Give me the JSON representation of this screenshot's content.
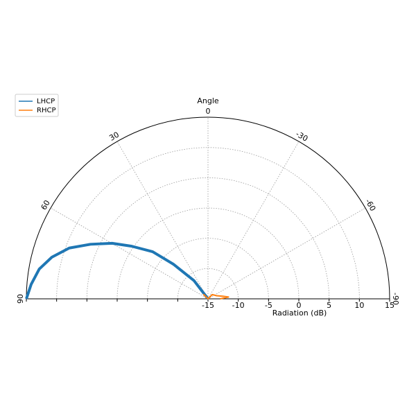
{
  "chart_data": {
    "type": "polar",
    "xlabel": "Angle",
    "ylabel": "Radiation (dB)",
    "xlim": [
      90,
      -90
    ],
    "xticks": [
      90,
      60,
      30,
      0,
      -30,
      -60,
      -90
    ],
    "ylim": [
      -15,
      15
    ],
    "yticks": [
      -15,
      -10,
      -5,
      0,
      5,
      10,
      15
    ],
    "grid": true,
    "legend": "upper left",
    "series": [
      {
        "name": "LHCP",
        "color": "#1f77b4",
        "x": [
          90,
          85.3,
          80,
          75.1,
          69.9,
          65.1,
          59.9,
          55.4,
          49.6,
          45,
          37.6,
          0
        ],
        "values": [
          15,
          14.3,
          13.3,
          11.7,
          9.4,
          6.4,
          3.3,
          0.3,
          -3,
          -6.9,
          -11.2,
          -15
        ]
      },
      {
        "name": "RHCP",
        "color": "#ff7f0e",
        "x": [
          90,
          45,
          0,
          -45,
          -70,
          -80,
          -85,
          -90
        ],
        "values": [
          -15,
          -14,
          -15,
          -14,
          -13.5,
          -12.5,
          -11.6,
          -13
        ]
      }
    ]
  }
}
